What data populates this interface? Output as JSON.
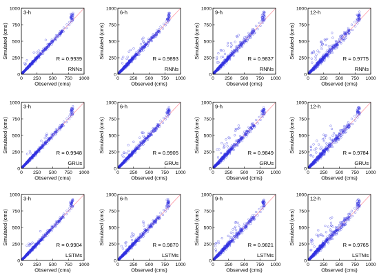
{
  "chart_data": [
    {
      "type": "scatter",
      "horizon_label": "3-h",
      "model_label": "RNNs",
      "r_label": "R = 0.9939",
      "xlabel": "Observed (cms)",
      "ylabel": "Simulated (cms)",
      "xlim": [
        0,
        1000
      ],
      "ylim": [
        0,
        1000
      ],
      "x_ticks": [
        "0",
        "250",
        "500",
        "750",
        "1000"
      ],
      "y_ticks": [
        "0",
        "250",
        "500",
        "750",
        "1000"
      ],
      "spread": 0.035
    },
    {
      "type": "scatter",
      "horizon_label": "6-h",
      "model_label": "RNNs",
      "r_label": "R = 0.9893",
      "xlabel": "Observed (cms)",
      "ylabel": "Simulated (cms)",
      "xlim": [
        0,
        1000
      ],
      "ylim": [
        0,
        1000
      ],
      "x_ticks": [
        "0",
        "250",
        "500",
        "750",
        "1000"
      ],
      "y_ticks": [
        "0",
        "250",
        "500",
        "750",
        "1000"
      ],
      "spread": 0.06
    },
    {
      "type": "scatter",
      "horizon_label": "9-h",
      "model_label": "RNNs",
      "r_label": "R = 0.9837",
      "xlabel": "Observed (cms)",
      "ylabel": "Simulated (cms)",
      "xlim": [
        0,
        1000
      ],
      "ylim": [
        0,
        1000
      ],
      "x_ticks": [
        "0",
        "250",
        "500",
        "750",
        "1000"
      ],
      "y_ticks": [
        "0",
        "250",
        "500",
        "750",
        "1000"
      ],
      "spread": 0.09
    },
    {
      "type": "scatter",
      "horizon_label": "12-h",
      "model_label": "RNNs",
      "r_label": "R = 0.9775",
      "xlabel": "Observed (cms)",
      "ylabel": "Simulated (cms)",
      "xlim": [
        0,
        1000
      ],
      "ylim": [
        0,
        1000
      ],
      "x_ticks": [
        "0",
        "250",
        "500",
        "750",
        "1000"
      ],
      "y_ticks": [
        "0",
        "250",
        "500",
        "750",
        "1000"
      ],
      "spread": 0.12
    },
    {
      "type": "scatter",
      "horizon_label": "3-h",
      "model_label": "GRUs",
      "r_label": "R = 0.9948",
      "xlabel": "Observed (cms)",
      "ylabel": "Simulated (cms)",
      "xlim": [
        0,
        1000
      ],
      "ylim": [
        0,
        1000
      ],
      "x_ticks": [
        "0",
        "250",
        "500",
        "750",
        "1000"
      ],
      "y_ticks": [
        "0",
        "250",
        "500",
        "750",
        "1000"
      ],
      "spread": 0.035
    },
    {
      "type": "scatter",
      "horizon_label": "6-h",
      "model_label": "GRUs",
      "r_label": "R = 0.9905",
      "xlabel": "Observed (cms)",
      "ylabel": "Simulated (cms)",
      "xlim": [
        0,
        1000
      ],
      "ylim": [
        0,
        1000
      ],
      "x_ticks": [
        "0",
        "250",
        "500",
        "750",
        "1000"
      ],
      "y_ticks": [
        "0",
        "250",
        "500",
        "750",
        "1000"
      ],
      "spread": 0.06
    },
    {
      "type": "scatter",
      "horizon_label": "9-h",
      "model_label": "GRUs",
      "r_label": "R = 0.9849",
      "xlabel": "Observed (cms)",
      "ylabel": "Simulated (cms)",
      "xlim": [
        0,
        1000
      ],
      "ylim": [
        0,
        1000
      ],
      "x_ticks": [
        "0",
        "250",
        "500",
        "750",
        "1000"
      ],
      "y_ticks": [
        "0",
        "250",
        "500",
        "750",
        "1000"
      ],
      "spread": 0.09
    },
    {
      "type": "scatter",
      "horizon_label": "12-h",
      "model_label": "GRUs",
      "r_label": "R = 0.9784",
      "xlabel": "Observed (cms)",
      "ylabel": "Simulated (cms)",
      "xlim": [
        0,
        1000
      ],
      "ylim": [
        0,
        1000
      ],
      "x_ticks": [
        "0",
        "250",
        "500",
        "750",
        "1000"
      ],
      "y_ticks": [
        "0",
        "250",
        "500",
        "750",
        "1000"
      ],
      "spread": 0.12
    },
    {
      "type": "scatter",
      "horizon_label": "3-h",
      "model_label": "LSTMs",
      "r_label": "R = 0.9904",
      "xlabel": "Observed (cms)",
      "ylabel": "Simulated (cms)",
      "xlim": [
        0,
        1000
      ],
      "ylim": [
        0,
        1000
      ],
      "x_ticks": [
        "0",
        "250",
        "500",
        "750",
        "1000"
      ],
      "y_ticks": [
        "0",
        "250",
        "500",
        "750",
        "1000"
      ],
      "spread": 0.035
    },
    {
      "type": "scatter",
      "horizon_label": "6-h",
      "model_label": "LSTMs",
      "r_label": "R = 0.9870",
      "xlabel": "Observed (cms)",
      "ylabel": "Simulated (cms)",
      "xlim": [
        0,
        1000
      ],
      "ylim": [
        0,
        1000
      ],
      "x_ticks": [
        "0",
        "250",
        "500",
        "750",
        "1000"
      ],
      "y_ticks": [
        "0",
        "250",
        "500",
        "750",
        "1000"
      ],
      "spread": 0.06
    },
    {
      "type": "scatter",
      "horizon_label": "9-h",
      "model_label": "LSTMs",
      "r_label": "R = 0.9821",
      "xlabel": "Observed (cms)",
      "ylabel": "Simulated (cms)",
      "xlim": [
        0,
        1000
      ],
      "ylim": [
        0,
        1000
      ],
      "x_ticks": [
        "0",
        "250",
        "500",
        "750",
        "1000"
      ],
      "y_ticks": [
        "0",
        "250",
        "500",
        "750",
        "1000"
      ],
      "spread": 0.09
    },
    {
      "type": "scatter",
      "horizon_label": "12-h",
      "model_label": "LSTMs",
      "r_label": "R = 0.9765",
      "xlabel": "Observed (cms)",
      "ylabel": "Simulated (cms)",
      "xlim": [
        0,
        1000
      ],
      "ylim": [
        0,
        1000
      ],
      "x_ticks": [
        "0",
        "250",
        "500",
        "750",
        "1000"
      ],
      "y_ticks": [
        "0",
        "250",
        "500",
        "750",
        "1000"
      ],
      "spread": 0.12
    }
  ],
  "colors": {
    "points": "#2f2fe0",
    "identity_line": "#ff9aa6",
    "axes": "#000000",
    "background": "#ffffff"
  }
}
